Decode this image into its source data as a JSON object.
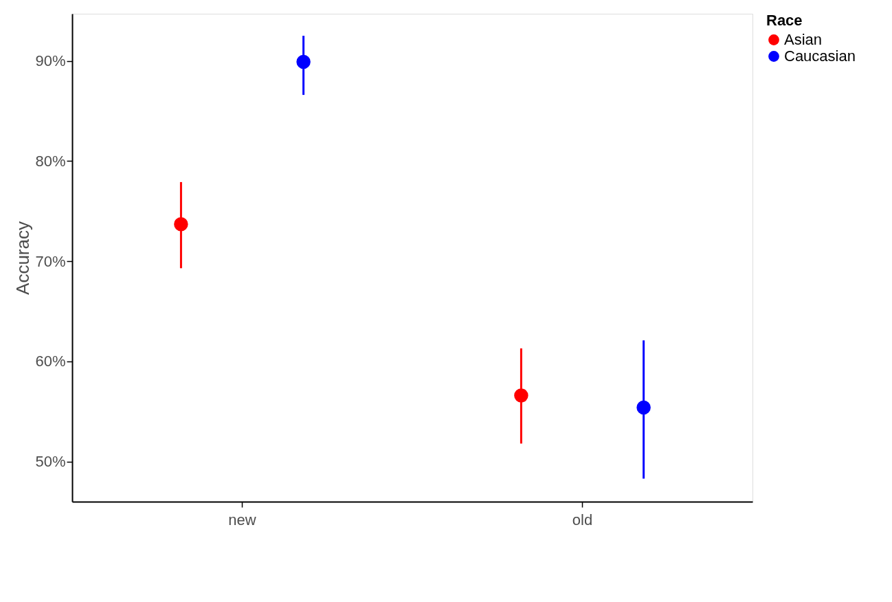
{
  "chart_data": {
    "type": "scatter",
    "ylabel": "Accuracy",
    "legend_title": "Race",
    "legend": "right",
    "marker": "circle",
    "grid": false,
    "categories": [
      "new",
      "old"
    ],
    "series": [
      {
        "name": "Asian",
        "color": "#ff0000",
        "values": [
          73.7,
          56.6
        ],
        "errors": [
          [
            69.3,
            77.9
          ],
          [
            51.8,
            61.3
          ]
        ]
      },
      {
        "name": "Caucasian",
        "color": "#0000ff",
        "values": [
          89.9,
          55.4
        ],
        "errors": [
          [
            86.6,
            92.5
          ],
          [
            48.3,
            62.1
          ]
        ]
      }
    ],
    "ylim": [
      46,
      94.7
    ],
    "yticks": [
      {
        "value": 50,
        "label": "50%"
      },
      {
        "value": 60,
        "label": "60%"
      },
      {
        "value": 70,
        "label": "70%"
      },
      {
        "value": 80,
        "label": "80%"
      },
      {
        "value": 90,
        "label": "90%"
      }
    ]
  }
}
